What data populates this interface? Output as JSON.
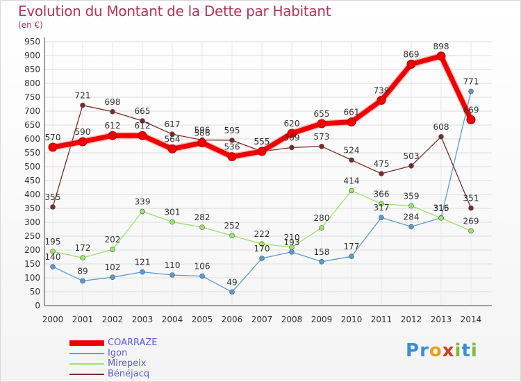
{
  "header": {
    "title": "Evolution du Montant de la Dette par Habitant",
    "subtitle": "(en €)"
  },
  "logo": {
    "letters": [
      {
        "ch": "P",
        "color": "#3a8fd6"
      },
      {
        "ch": "r",
        "color": "#3a8fd6"
      },
      {
        "ch": "o",
        "color": "#e8a21b"
      },
      {
        "ch": "x",
        "color": "#d93a2b"
      },
      {
        "ch": "i",
        "color": "#7cbd3a"
      },
      {
        "ch": "t",
        "color": "#3a8fd6"
      },
      {
        "ch": "i",
        "color": "#7cbd3a"
      }
    ]
  },
  "chart_data": {
    "type": "line",
    "title": "Evolution du Montant de la Dette par Habitant",
    "subtitle": "(en €)",
    "xlabel": "",
    "ylabel": "",
    "x": [
      "2000",
      "2001",
      "2002",
      "2003",
      "2004",
      "2005",
      "2006",
      "2007",
      "2008",
      "2009",
      "2010",
      "2011",
      "2012",
      "2013",
      "2014"
    ],
    "yticks": [
      0,
      50,
      100,
      150,
      200,
      250,
      300,
      350,
      400,
      450,
      500,
      550,
      600,
      650,
      700,
      750,
      800,
      850,
      900,
      950
    ],
    "ylim": [
      0,
      950
    ],
    "grid": true,
    "legend_position": "bottom-left",
    "series": [
      {
        "name": "COARRAZE",
        "color": "#ee0000",
        "width": 7,
        "marker": 6,
        "values": [
          570,
          590,
          612,
          612,
          564,
          586,
          536,
          555,
          620,
          655,
          661,
          739,
          869,
          898,
          669
        ],
        "labels": [
          "570",
          "590",
          "612",
          "612",
          "564",
          "586",
          "536",
          "555",
          "620",
          "655",
          "661",
          "739",
          "869",
          "898",
          "669"
        ]
      },
      {
        "name": "Igon",
        "color": "#5b9bd5",
        "width": 1.3,
        "marker": 3.5,
        "values": [
          140,
          89,
          102,
          121,
          110,
          106,
          49,
          170,
          193,
          158,
          177,
          317,
          284,
          316,
          771
        ],
        "labels": [
          "140",
          "89",
          "102",
          "121",
          "110",
          "106",
          "49",
          "170",
          "193",
          "158",
          "177",
          "317",
          "284",
          "316",
          "771"
        ]
      },
      {
        "name": "Mirepeix",
        "color": "#9be36a",
        "width": 1.3,
        "marker": 3.5,
        "values": [
          195,
          172,
          202,
          339,
          301,
          282,
          252,
          222,
          210,
          280,
          414,
          366,
          359,
          315,
          269
        ],
        "labels": [
          "195",
          "172",
          "202",
          "339",
          "301",
          "282",
          "252",
          "222",
          "210",
          "280",
          "414",
          "366",
          "359",
          "315",
          "269"
        ]
      },
      {
        "name": "Bénéjacq",
        "color": "#7a2a2a",
        "width": 1.3,
        "marker": 3.5,
        "values": [
          355,
          721,
          698,
          665,
          617,
          596,
          595,
          555,
          569,
          573,
          524,
          475,
          503,
          608,
          351
        ],
        "labels": [
          "355",
          "721",
          "698",
          "665",
          "617",
          "596",
          "595",
          "555",
          "569",
          "573",
          "524",
          "475",
          "503",
          "608",
          "351"
        ]
      }
    ]
  }
}
